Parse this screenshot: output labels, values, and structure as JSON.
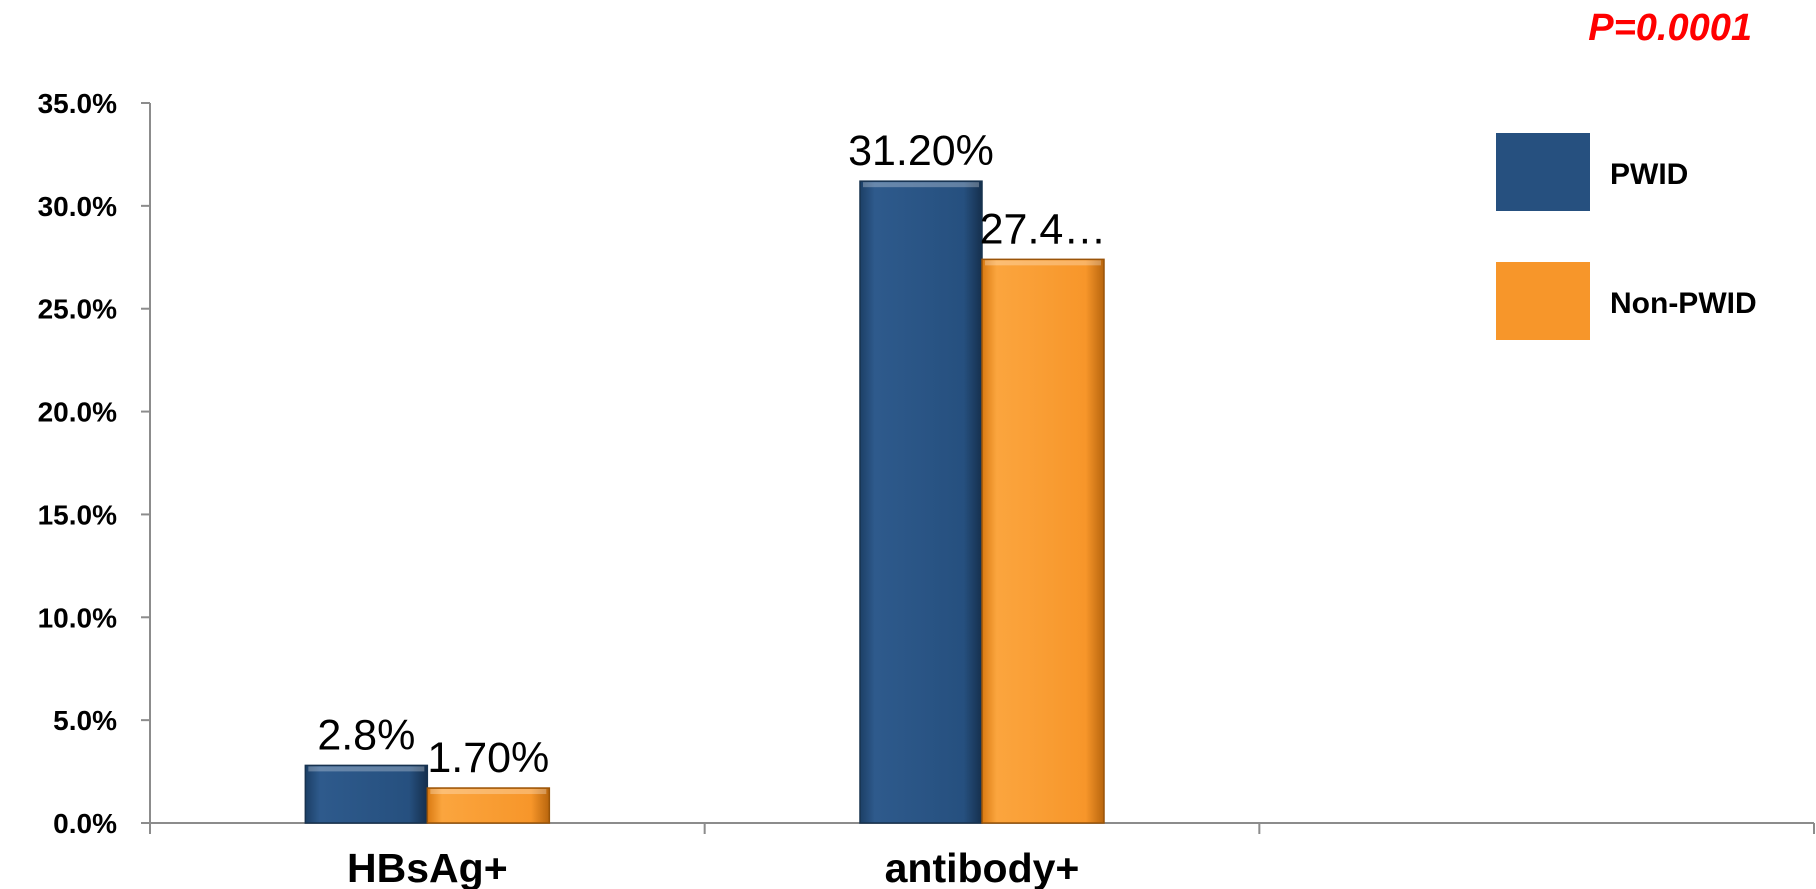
{
  "chart_data": {
    "type": "bar",
    "categories": [
      "HBsAg+",
      "antibody+",
      ""
    ],
    "series": [
      {
        "name": "PWID",
        "values": [
          2.8,
          31.2,
          null
        ],
        "labels": [
          "2.8%",
          "31.20%",
          ""
        ],
        "color": "#26507f"
      },
      {
        "name": "Non-PWID",
        "values": [
          1.7,
          27.4,
          null
        ],
        "labels": [
          "1.70%",
          "27.4…",
          ""
        ],
        "color": "#f7962a"
      }
    ],
    "ylim": [
      0,
      35
    ],
    "yticks": [
      "0.0%",
      "5.0%",
      "10.0%",
      "15.0%",
      "20.0%",
      "25.0%",
      "30.0%",
      "35.0%"
    ],
    "grid": false,
    "legend_position": "top-right",
    "annotation": "P=0.0001",
    "title": "",
    "xlabel": "",
    "ylabel": ""
  }
}
